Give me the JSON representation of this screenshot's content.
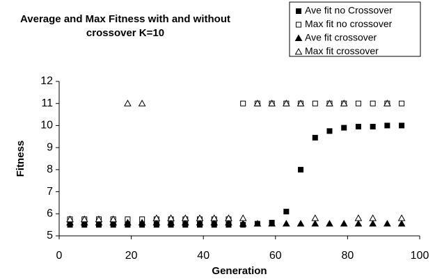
{
  "chart_data": {
    "type": "scatter",
    "title": "Average and Max Fitness with and without crossover K=10",
    "xlabel": "Generation",
    "ylabel": "Fitness",
    "xlim": [
      0,
      100
    ],
    "xticks": [
      0,
      20,
      40,
      60,
      80,
      100
    ],
    "ylim": [
      5,
      12
    ],
    "yticks": [
      5,
      6,
      7,
      8,
      9,
      10,
      11,
      12
    ],
    "grid": false,
    "legend": "top-right",
    "x": [
      3,
      7,
      11,
      15,
      19,
      23,
      27,
      31,
      35,
      39,
      43,
      47,
      51,
      55,
      59,
      63,
      67,
      71,
      75,
      79,
      83,
      87,
      91,
      95
    ],
    "series": [
      {
        "name": "Ave fit no Crossover",
        "color": "#000000",
        "marker": "square-filled",
        "values": [
          5.5,
          5.5,
          5.5,
          5.5,
          5.5,
          5.5,
          5.5,
          5.5,
          5.5,
          5.5,
          5.5,
          5.5,
          5.5,
          5.55,
          5.6,
          6.1,
          8.0,
          9.45,
          9.75,
          9.9,
          9.95,
          9.95,
          10.0,
          10.0
        ]
      },
      {
        "name": "Max fit no crossover",
        "color": "#000000",
        "marker": "square-open",
        "values": [
          5.75,
          5.75,
          5.75,
          5.75,
          5.75,
          5.75,
          5.75,
          5.75,
          5.75,
          5.75,
          5.75,
          5.75,
          11,
          11,
          11,
          11,
          11,
          11,
          11,
          11,
          11,
          11,
          11,
          11
        ]
      },
      {
        "name": "Ave fit crossover",
        "color": "#000000",
        "marker": "triangle-filled",
        "values": [
          5.6,
          5.6,
          5.6,
          5.6,
          5.6,
          5.6,
          5.6,
          5.6,
          5.6,
          5.6,
          5.6,
          5.6,
          5.55,
          5.55,
          5.55,
          5.55,
          5.55,
          5.55,
          5.55,
          5.55,
          5.55,
          5.55,
          5.55,
          5.55
        ]
      },
      {
        "name": "Max fit crossover",
        "color": "#000000",
        "marker": "triangle-open",
        "values": [
          5.75,
          5.75,
          5.75,
          5.75,
          11,
          11,
          5.8,
          5.8,
          5.8,
          5.8,
          5.8,
          5.8,
          5.8,
          11,
          11,
          11,
          11,
          5.8,
          11,
          11,
          5.8,
          5.8,
          11,
          5.8
        ]
      }
    ]
  }
}
